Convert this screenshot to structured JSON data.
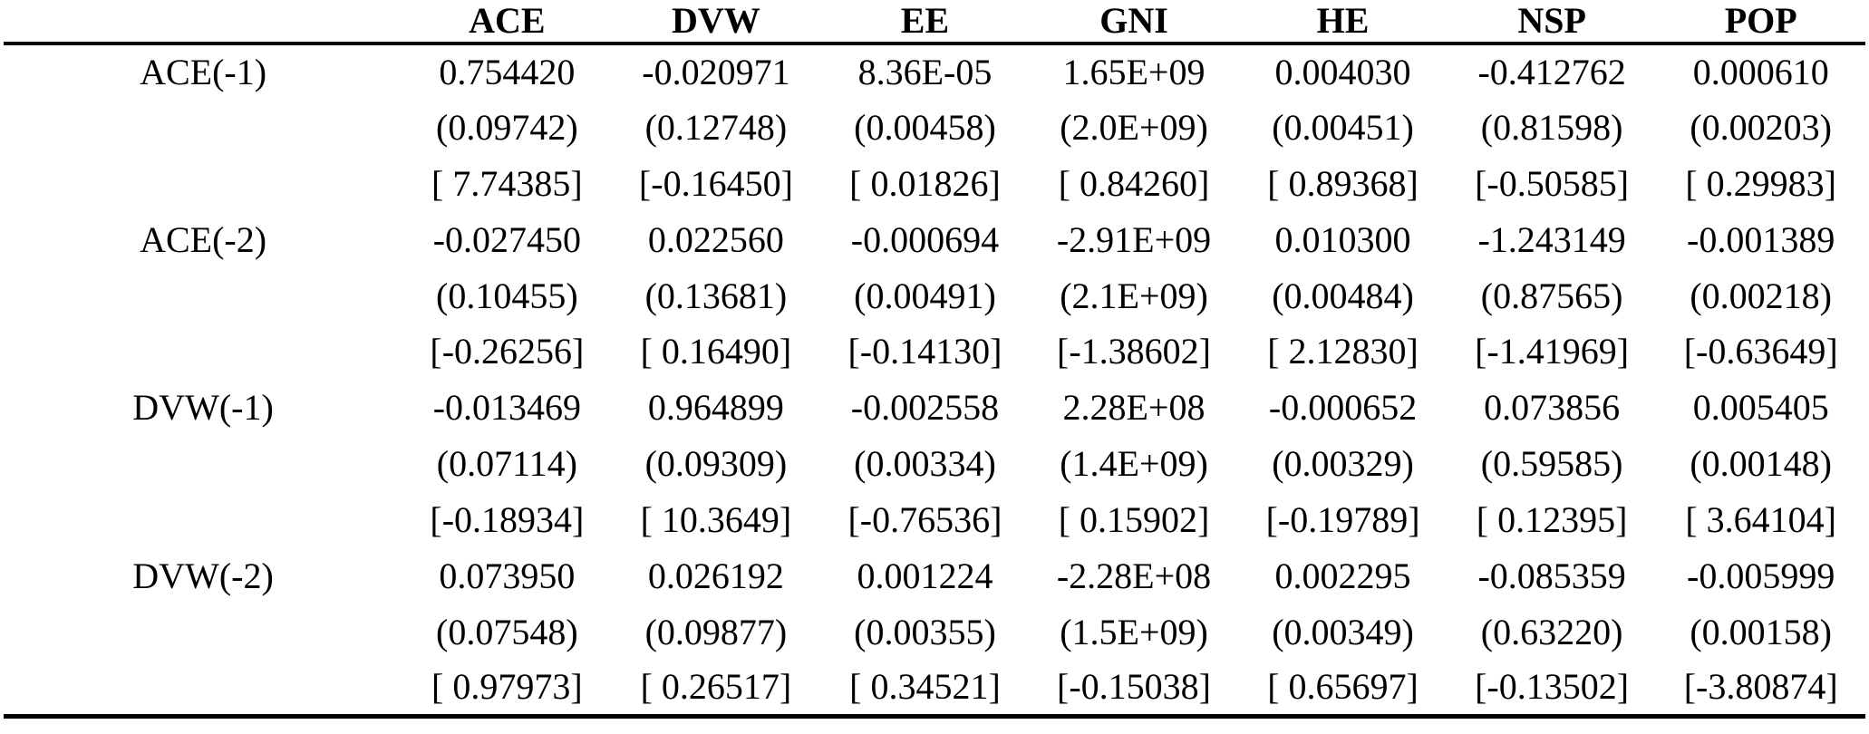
{
  "table": {
    "corner_label": "",
    "columns": [
      "ACE",
      "DVW",
      "EE",
      "GNI",
      "HE",
      "NSP",
      "POP"
    ],
    "rows": [
      {
        "label": "ACE(-1)",
        "coef": [
          "0.754420",
          "-0.020971",
          "8.36E-05",
          "1.65E+09",
          "0.004030",
          "-0.412762",
          "0.000610"
        ],
        "se": [
          "(0.09742)",
          "(0.12748)",
          "(0.00458)",
          "(2.0E+09)",
          "(0.00451)",
          "(0.81598)",
          "(0.00203)"
        ],
        "tstat": [
          "[ 7.74385]",
          "[-0.16450]",
          "[ 0.01826]",
          "[ 0.84260]",
          "[ 0.89368]",
          "[-0.50585]",
          "[ 0.29983]"
        ]
      },
      {
        "label": "ACE(-2)",
        "coef": [
          "-0.027450",
          "0.022560",
          "-0.000694",
          "-2.91E+09",
          "0.010300",
          "-1.243149",
          "-0.001389"
        ],
        "se": [
          "(0.10455)",
          "(0.13681)",
          "(0.00491)",
          "(2.1E+09)",
          "(0.00484)",
          "(0.87565)",
          "(0.00218)"
        ],
        "tstat": [
          "[-0.26256]",
          "[ 0.16490]",
          "[-0.14130]",
          "[-1.38602]",
          "[ 2.12830]",
          "[-1.41969]",
          "[-0.63649]"
        ]
      },
      {
        "label": "DVW(-1)",
        "coef": [
          "-0.013469",
          "0.964899",
          "-0.002558",
          "2.28E+08",
          "-0.000652",
          "0.073856",
          "0.005405"
        ],
        "se": [
          "(0.07114)",
          "(0.09309)",
          "(0.00334)",
          "(1.4E+09)",
          "(0.00329)",
          "(0.59585)",
          "(0.00148)"
        ],
        "tstat": [
          "[-0.18934]",
          "[ 10.3649]",
          "[-0.76536]",
          "[ 0.15902]",
          "[-0.19789]",
          "[ 0.12395]",
          "[ 3.64104]"
        ]
      },
      {
        "label": "DVW(-2)",
        "coef": [
          "0.073950",
          "0.026192",
          "0.001224",
          "-2.28E+08",
          "0.002295",
          "-0.085359",
          "-0.005999"
        ],
        "se": [
          "(0.07548)",
          "(0.09877)",
          "(0.00355)",
          "(1.5E+09)",
          "(0.00349)",
          "(0.63220)",
          "(0.00158)"
        ],
        "tstat": [
          "[ 0.97973]",
          "[ 0.26517]",
          "[ 0.34521]",
          "[-0.15038]",
          "[ 0.65697]",
          "[-0.13502]",
          "[-3.80874]"
        ]
      }
    ]
  }
}
